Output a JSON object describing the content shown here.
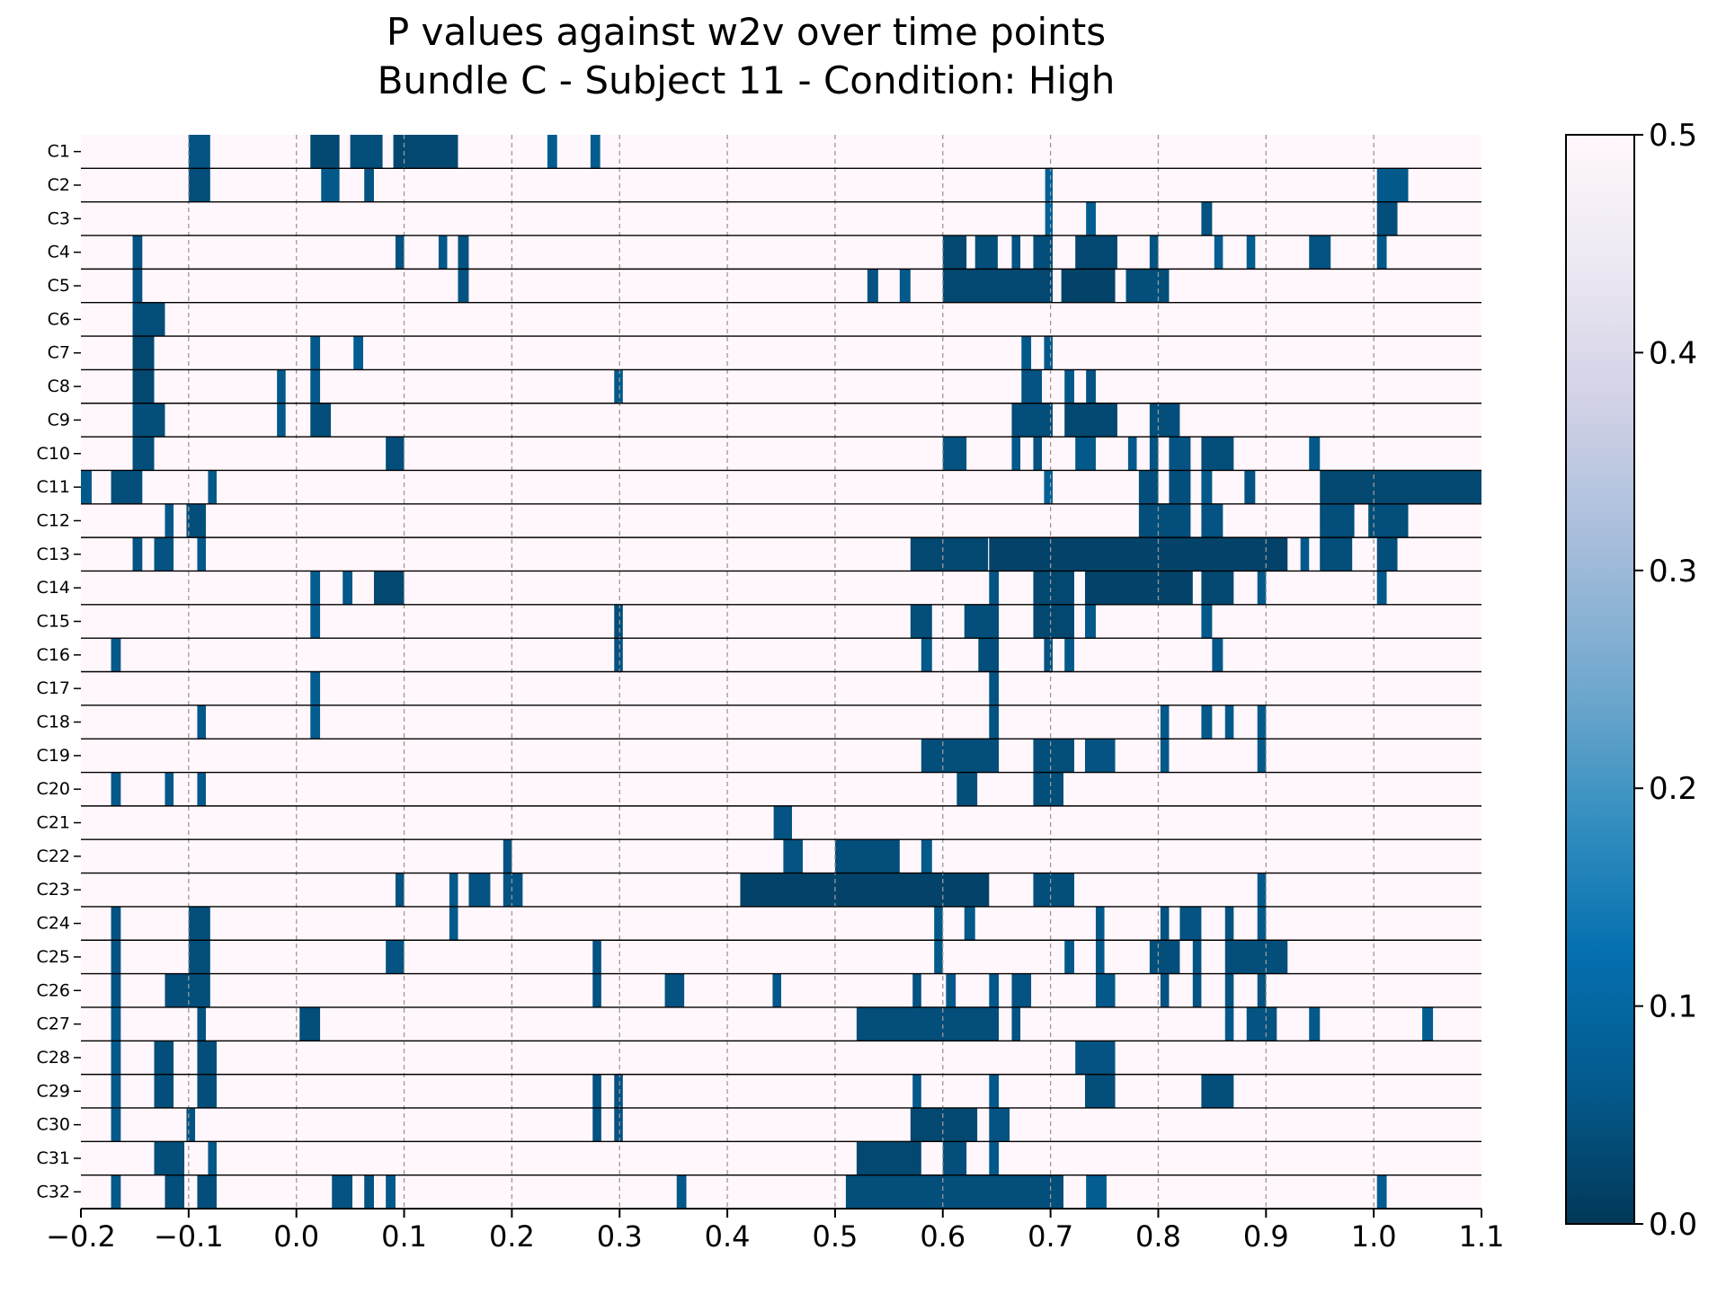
{
  "chart_data": {
    "type": "heatmap",
    "title": "P values against w2v over time points",
    "subtitle": "Bundle C - Subject 11 - Condition: High",
    "xlabel": "",
    "ylabel": "",
    "xlim": [
      -0.2,
      1.1
    ],
    "xticks": [
      -0.2,
      -0.1,
      0.0,
      0.1,
      0.2,
      0.3,
      0.4,
      0.5,
      0.6,
      0.7,
      0.8,
      0.9,
      1.0,
      1.1
    ],
    "xtick_labels": [
      "−0.2",
      "−0.1",
      "0.0",
      "0.1",
      "0.2",
      "0.3",
      "0.4",
      "0.5",
      "0.6",
      "0.7",
      "0.8",
      "0.9",
      "1.0",
      "1.1"
    ],
    "vertical_gridlines": [
      -0.1,
      0.0,
      0.1,
      0.2,
      0.3,
      0.4,
      0.5,
      0.6,
      0.7,
      0.8,
      0.9,
      1.0
    ],
    "grid": "dashed vertical lines at 0.1 intervals; solid horizontal separators between rows",
    "rows": [
      "C1",
      "C2",
      "C3",
      "C4",
      "C5",
      "C6",
      "C7",
      "C8",
      "C9",
      "C10",
      "C11",
      "C12",
      "C13",
      "C14",
      "C15",
      "C16",
      "C17",
      "C18",
      "C19",
      "C20",
      "C21",
      "C22",
      "C23",
      "C24",
      "C25",
      "C26",
      "C27",
      "C28",
      "C29",
      "C30",
      "C31",
      "C32"
    ],
    "background_value": 0.5,
    "significant_value_range": [
      0.0,
      0.08
    ],
    "segments_note": "Each row: list of [t_start, t_end, p_value] intervals with low p; all other times have p = 0.5",
    "segments": {
      "C1": [
        [
          -0.1,
          -0.08,
          0.05
        ],
        [
          0.013,
          0.04,
          0.03
        ],
        [
          0.05,
          0.08,
          0.04
        ],
        [
          0.09,
          0.15,
          0.03
        ],
        [
          0.233,
          0.242,
          0.07
        ],
        [
          0.273,
          0.282,
          0.07
        ]
      ],
      "C2": [
        [
          -0.1,
          -0.08,
          0.04
        ],
        [
          0.023,
          0.04,
          0.06
        ],
        [
          0.063,
          0.072,
          0.05
        ],
        [
          0.695,
          0.702,
          0.08
        ],
        [
          1.003,
          1.032,
          0.06
        ]
      ],
      "C3": [
        [
          0.695,
          0.702,
          0.08
        ],
        [
          0.733,
          0.742,
          0.07
        ],
        [
          0.84,
          0.85,
          0.05
        ],
        [
          1.003,
          1.022,
          0.04
        ]
      ],
      "C4": [
        [
          -0.152,
          -0.143,
          0.05
        ],
        [
          0.092,
          0.1,
          0.05
        ],
        [
          0.132,
          0.14,
          0.06
        ],
        [
          0.15,
          0.16,
          0.05
        ],
        [
          0.6,
          0.622,
          0.03
        ],
        [
          0.63,
          0.651,
          0.04
        ],
        [
          0.664,
          0.672,
          0.05
        ],
        [
          0.684,
          0.702,
          0.04
        ],
        [
          0.723,
          0.762,
          0.03
        ],
        [
          0.792,
          0.8,
          0.05
        ],
        [
          0.852,
          0.86,
          0.07
        ],
        [
          0.882,
          0.89,
          0.07
        ],
        [
          0.94,
          0.96,
          0.05
        ],
        [
          1.003,
          1.012,
          0.06
        ]
      ],
      "C5": [
        [
          -0.152,
          -0.143,
          0.05
        ],
        [
          0.15,
          0.16,
          0.05
        ],
        [
          0.53,
          0.54,
          0.05
        ],
        [
          0.56,
          0.57,
          0.06
        ],
        [
          0.6,
          0.702,
          0.03
        ],
        [
          0.71,
          0.76,
          0.02
        ],
        [
          0.77,
          0.81,
          0.04
        ]
      ],
      "C6": [
        [
          -0.152,
          -0.122,
          0.04
        ]
      ],
      "C7": [
        [
          -0.152,
          -0.132,
          0.03
        ],
        [
          0.013,
          0.022,
          0.06
        ],
        [
          0.053,
          0.062,
          0.07
        ],
        [
          0.673,
          0.682,
          0.06
        ],
        [
          0.694,
          0.702,
          0.06
        ]
      ],
      "C8": [
        [
          -0.152,
          -0.132,
          0.03
        ],
        [
          -0.018,
          -0.01,
          0.06
        ],
        [
          0.013,
          0.022,
          0.06
        ],
        [
          0.295,
          0.303,
          0.06
        ],
        [
          0.673,
          0.692,
          0.05
        ],
        [
          0.713,
          0.722,
          0.06
        ],
        [
          0.733,
          0.742,
          0.05
        ]
      ],
      "C9": [
        [
          -0.152,
          -0.122,
          0.04
        ],
        [
          -0.018,
          -0.01,
          0.06
        ],
        [
          0.013,
          0.032,
          0.04
        ],
        [
          0.664,
          0.702,
          0.04
        ],
        [
          0.713,
          0.762,
          0.03
        ],
        [
          0.792,
          0.82,
          0.04
        ]
      ],
      "C10": [
        [
          -0.152,
          -0.132,
          0.04
        ],
        [
          0.083,
          0.1,
          0.04
        ],
        [
          0.6,
          0.622,
          0.05
        ],
        [
          0.664,
          0.672,
          0.06
        ],
        [
          0.684,
          0.692,
          0.05
        ],
        [
          0.723,
          0.742,
          0.06
        ],
        [
          0.772,
          0.78,
          0.06
        ],
        [
          0.792,
          0.8,
          0.05
        ],
        [
          0.81,
          0.83,
          0.05
        ],
        [
          0.84,
          0.87,
          0.04
        ],
        [
          0.94,
          0.95,
          0.06
        ]
      ],
      "C11": [
        [
          -0.2,
          -0.19,
          0.06
        ],
        [
          -0.172,
          -0.143,
          0.04
        ],
        [
          -0.082,
          -0.074,
          0.06
        ],
        [
          0.694,
          0.702,
          0.08
        ],
        [
          0.782,
          0.8,
          0.04
        ],
        [
          0.81,
          0.83,
          0.04
        ],
        [
          0.84,
          0.85,
          0.06
        ],
        [
          0.88,
          0.89,
          0.05
        ],
        [
          0.95,
          1.1,
          0.03
        ]
      ],
      "C12": [
        [
          -0.122,
          -0.114,
          0.06
        ],
        [
          -0.102,
          -0.084,
          0.04
        ],
        [
          0.782,
          0.83,
          0.04
        ],
        [
          0.84,
          0.86,
          0.05
        ],
        [
          0.95,
          0.982,
          0.04
        ],
        [
          0.995,
          1.032,
          0.04
        ]
      ],
      "C13": [
        [
          -0.152,
          -0.143,
          0.05
        ],
        [
          -0.132,
          -0.114,
          0.05
        ],
        [
          -0.092,
          -0.084,
          0.06
        ],
        [
          0.57,
          0.642,
          0.03
        ],
        [
          0.643,
          0.92,
          0.02
        ],
        [
          0.932,
          0.94,
          0.06
        ],
        [
          0.95,
          0.98,
          0.04
        ],
        [
          1.003,
          1.022,
          0.04
        ]
      ],
      "C14": [
        [
          0.013,
          0.022,
          0.07
        ],
        [
          0.043,
          0.052,
          0.06
        ],
        [
          0.072,
          0.1,
          0.03
        ],
        [
          0.643,
          0.652,
          0.05
        ],
        [
          0.684,
          0.722,
          0.03
        ],
        [
          0.732,
          0.832,
          0.02
        ],
        [
          0.84,
          0.87,
          0.03
        ],
        [
          0.892,
          0.9,
          0.06
        ],
        [
          1.003,
          1.012,
          0.06
        ]
      ],
      "C15": [
        [
          0.013,
          0.022,
          0.07
        ],
        [
          0.295,
          0.303,
          0.04
        ],
        [
          0.57,
          0.59,
          0.04
        ],
        [
          0.62,
          0.652,
          0.04
        ],
        [
          0.684,
          0.722,
          0.03
        ],
        [
          0.732,
          0.742,
          0.06
        ],
        [
          0.84,
          0.85,
          0.06
        ]
      ],
      "C16": [
        [
          -0.172,
          -0.163,
          0.06
        ],
        [
          0.295,
          0.303,
          0.05
        ],
        [
          0.58,
          0.59,
          0.06
        ],
        [
          0.633,
          0.652,
          0.04
        ],
        [
          0.694,
          0.702,
          0.05
        ],
        [
          0.713,
          0.722,
          0.06
        ],
        [
          0.85,
          0.86,
          0.06
        ]
      ],
      "C17": [
        [
          0.013,
          0.022,
          0.07
        ],
        [
          0.643,
          0.652,
          0.05
        ]
      ],
      "C18": [
        [
          -0.092,
          -0.084,
          0.06
        ],
        [
          0.013,
          0.022,
          0.07
        ],
        [
          0.643,
          0.652,
          0.05
        ],
        [
          0.802,
          0.81,
          0.06
        ],
        [
          0.84,
          0.85,
          0.06
        ],
        [
          0.862,
          0.87,
          0.06
        ],
        [
          0.892,
          0.9,
          0.06
        ]
      ],
      "C19": [
        [
          0.58,
          0.652,
          0.04
        ],
        [
          0.684,
          0.722,
          0.04
        ],
        [
          0.732,
          0.76,
          0.05
        ],
        [
          0.802,
          0.81,
          0.06
        ],
        [
          0.892,
          0.9,
          0.06
        ]
      ],
      "C20": [
        [
          -0.172,
          -0.163,
          0.06
        ],
        [
          -0.122,
          -0.114,
          0.06
        ],
        [
          -0.092,
          -0.084,
          0.06
        ],
        [
          0.613,
          0.632,
          0.04
        ],
        [
          0.684,
          0.712,
          0.04
        ]
      ],
      "C21": [
        [
          0.443,
          0.46,
          0.05
        ]
      ],
      "C22": [
        [
          0.192,
          0.2,
          0.05
        ],
        [
          0.452,
          0.47,
          0.05
        ],
        [
          0.5,
          0.56,
          0.04
        ],
        [
          0.58,
          0.59,
          0.06
        ]
      ],
      "C23": [
        [
          0.092,
          0.1,
          0.05
        ],
        [
          0.142,
          0.15,
          0.06
        ],
        [
          0.16,
          0.18,
          0.05
        ],
        [
          0.192,
          0.21,
          0.05
        ],
        [
          0.412,
          0.643,
          0.02
        ],
        [
          0.684,
          0.722,
          0.04
        ],
        [
          0.892,
          0.9,
          0.06
        ]
      ],
      "C24": [
        [
          -0.172,
          -0.163,
          0.05
        ],
        [
          -0.1,
          -0.08,
          0.04
        ],
        [
          0.142,
          0.15,
          0.06
        ],
        [
          0.592,
          0.6,
          0.06
        ],
        [
          0.62,
          0.63,
          0.06
        ],
        [
          0.742,
          0.75,
          0.06
        ],
        [
          0.802,
          0.81,
          0.05
        ],
        [
          0.82,
          0.84,
          0.05
        ],
        [
          0.862,
          0.87,
          0.05
        ],
        [
          0.892,
          0.9,
          0.06
        ]
      ],
      "C25": [
        [
          -0.172,
          -0.163,
          0.05
        ],
        [
          -0.1,
          -0.08,
          0.04
        ],
        [
          0.083,
          0.1,
          0.05
        ],
        [
          0.275,
          0.283,
          0.05
        ],
        [
          0.592,
          0.6,
          0.06
        ],
        [
          0.713,
          0.722,
          0.06
        ],
        [
          0.742,
          0.75,
          0.06
        ],
        [
          0.792,
          0.82,
          0.04
        ],
        [
          0.832,
          0.84,
          0.05
        ],
        [
          0.862,
          0.92,
          0.04
        ]
      ],
      "C26": [
        [
          -0.172,
          -0.163,
          0.05
        ],
        [
          -0.122,
          -0.08,
          0.04
        ],
        [
          0.275,
          0.283,
          0.05
        ],
        [
          0.342,
          0.36,
          0.05
        ],
        [
          0.442,
          0.45,
          0.06
        ],
        [
          0.572,
          0.58,
          0.05
        ],
        [
          0.603,
          0.612,
          0.06
        ],
        [
          0.643,
          0.652,
          0.06
        ],
        [
          0.664,
          0.682,
          0.05
        ],
        [
          0.742,
          0.76,
          0.06
        ],
        [
          0.802,
          0.81,
          0.05
        ],
        [
          0.832,
          0.84,
          0.05
        ],
        [
          0.862,
          0.87,
          0.05
        ],
        [
          0.892,
          0.9,
          0.05
        ]
      ],
      "C27": [
        [
          -0.172,
          -0.163,
          0.06
        ],
        [
          -0.092,
          -0.084,
          0.05
        ],
        [
          0.003,
          0.022,
          0.04
        ],
        [
          0.52,
          0.652,
          0.04
        ],
        [
          0.664,
          0.672,
          0.05
        ],
        [
          0.862,
          0.87,
          0.06
        ],
        [
          0.882,
          0.91,
          0.05
        ],
        [
          0.94,
          0.95,
          0.06
        ],
        [
          1.045,
          1.055,
          0.07
        ]
      ],
      "C28": [
        [
          -0.172,
          -0.163,
          0.06
        ],
        [
          -0.132,
          -0.114,
          0.04
        ],
        [
          -0.092,
          -0.074,
          0.04
        ],
        [
          0.723,
          0.76,
          0.05
        ]
      ],
      "C29": [
        [
          -0.172,
          -0.163,
          0.06
        ],
        [
          -0.132,
          -0.114,
          0.04
        ],
        [
          -0.092,
          -0.074,
          0.04
        ],
        [
          0.275,
          0.283,
          0.05
        ],
        [
          0.295,
          0.303,
          0.05
        ],
        [
          0.572,
          0.58,
          0.06
        ],
        [
          0.643,
          0.652,
          0.06
        ],
        [
          0.732,
          0.76,
          0.04
        ],
        [
          0.84,
          0.87,
          0.04
        ]
      ],
      "C30": [
        [
          -0.172,
          -0.163,
          0.06
        ],
        [
          -0.102,
          -0.094,
          0.05
        ],
        [
          0.275,
          0.283,
          0.05
        ],
        [
          0.295,
          0.303,
          0.05
        ],
        [
          0.57,
          0.632,
          0.03
        ],
        [
          0.643,
          0.662,
          0.05
        ]
      ],
      "C31": [
        [
          -0.132,
          -0.104,
          0.04
        ],
        [
          -0.082,
          -0.074,
          0.06
        ],
        [
          0.52,
          0.58,
          0.03
        ],
        [
          0.6,
          0.622,
          0.04
        ],
        [
          0.643,
          0.652,
          0.06
        ]
      ],
      "C32": [
        [
          -0.172,
          -0.163,
          0.06
        ],
        [
          -0.122,
          -0.104,
          0.04
        ],
        [
          -0.092,
          -0.074,
          0.04
        ],
        [
          0.033,
          0.052,
          0.05
        ],
        [
          0.063,
          0.072,
          0.05
        ],
        [
          0.083,
          0.092,
          0.06
        ],
        [
          0.353,
          0.362,
          0.06
        ],
        [
          0.51,
          0.712,
          0.04
        ],
        [
          0.733,
          0.752,
          0.07
        ],
        [
          1.003,
          1.012,
          0.07
        ]
      ]
    },
    "colorbar": {
      "colormap": "PuBu reversed",
      "min": 0.0,
      "max": 0.5,
      "ticks": [
        0.0,
        0.1,
        0.2,
        0.3,
        0.4,
        0.5
      ],
      "tick_labels": [
        "0.0",
        "0.1",
        "0.2",
        "0.3",
        "0.4",
        "0.5"
      ],
      "stops": [
        [
          0.0,
          "#023858"
        ],
        [
          0.125,
          "#045a8d"
        ],
        [
          0.25,
          "#0570b0"
        ],
        [
          0.375,
          "#3690c0"
        ],
        [
          0.5,
          "#74a9cf"
        ],
        [
          0.625,
          "#a6bddb"
        ],
        [
          0.75,
          "#d0d1e6"
        ],
        [
          0.875,
          "#ece7f2"
        ],
        [
          1.0,
          "#fff7fb"
        ]
      ]
    },
    "colors": {
      "separator": "#000000",
      "gridline": "#999999"
    }
  }
}
